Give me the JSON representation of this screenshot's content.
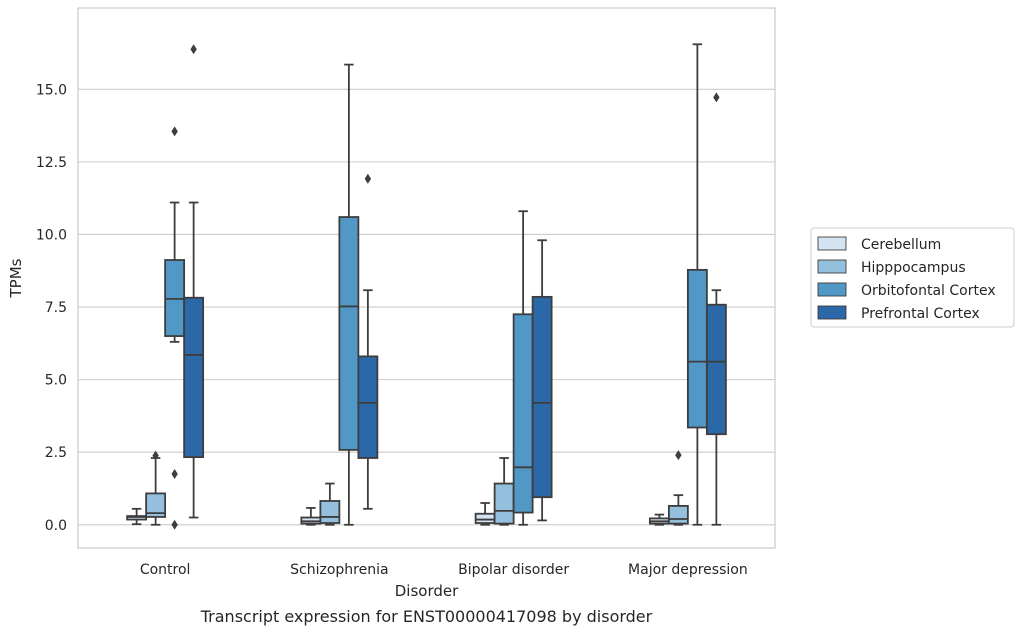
{
  "chart_data": {
    "type": "box",
    "caption": "Transcript expression for ENST00000417098 by disorder",
    "xlabel": "Disorder",
    "ylabel": "TPMs",
    "ylim": [
      -0.8,
      17.8
    ],
    "yticks": [
      0.0,
      2.5,
      5.0,
      7.5,
      10.0,
      12.5,
      15.0
    ],
    "ytick_labels": [
      "0.0",
      "2.5",
      "5.0",
      "7.5",
      "10.0",
      "12.5",
      "15.0"
    ],
    "grid": "horizontal",
    "legend_position": "right",
    "categories": [
      "Control",
      "Schizophrenia",
      "Bipolar disorder",
      "Major depression"
    ],
    "series": [
      {
        "name": "Cerebellum",
        "color": "#d3e3f1",
        "boxes": [
          {
            "whislo": 0.02,
            "q1": 0.18,
            "med": 0.27,
            "q3": 0.3,
            "whishi": 0.55,
            "fliers": []
          },
          {
            "whislo": 0.0,
            "q1": 0.04,
            "med": 0.12,
            "q3": 0.25,
            "whishi": 0.58,
            "fliers": []
          },
          {
            "whislo": 0.0,
            "q1": 0.06,
            "med": 0.18,
            "q3": 0.38,
            "whishi": 0.75,
            "fliers": []
          },
          {
            "whislo": 0.0,
            "q1": 0.04,
            "med": 0.12,
            "q3": 0.22,
            "whishi": 0.35,
            "fliers": []
          }
        ]
      },
      {
        "name": "Hipppocampus",
        "color": "#94c0dd",
        "boxes": [
          {
            "whislo": 0.0,
            "q1": 0.27,
            "med": 0.4,
            "q3": 1.08,
            "whishi": 2.3,
            "fliers": [
              2.38
            ]
          },
          {
            "whislo": 0.0,
            "q1": 0.06,
            "med": 0.27,
            "q3": 0.82,
            "whishi": 1.42,
            "fliers": []
          },
          {
            "whislo": 0.0,
            "q1": 0.04,
            "med": 0.48,
            "q3": 1.42,
            "whishi": 2.3,
            "fliers": []
          },
          {
            "whislo": 0.0,
            "q1": 0.04,
            "med": 0.2,
            "q3": 0.65,
            "whishi": 1.02,
            "fliers": [
              2.4
            ]
          }
        ]
      },
      {
        "name": "Orbitofontal Cortex",
        "color": "#5198c7",
        "boxes": [
          {
            "whislo": 6.3,
            "q1": 6.5,
            "med": 7.78,
            "q3": 9.12,
            "whishi": 11.1,
            "fliers": [
              13.55,
              1.75,
              0.0
            ]
          },
          {
            "whislo": 0.0,
            "q1": 2.58,
            "med": 7.52,
            "q3": 10.6,
            "whishi": 15.85,
            "fliers": []
          },
          {
            "whislo": 0.0,
            "q1": 0.42,
            "med": 1.98,
            "q3": 7.25,
            "whishi": 10.8,
            "fliers": []
          },
          {
            "whislo": 0.0,
            "q1": 3.35,
            "med": 5.62,
            "q3": 8.78,
            "whishi": 16.55,
            "fliers": []
          }
        ]
      },
      {
        "name": "Prefrontal Cortex",
        "color": "#2a68a8",
        "boxes": [
          {
            "whislo": 0.25,
            "q1": 2.33,
            "med": 5.85,
            "q3": 7.82,
            "whishi": 11.1,
            "fliers": [
              16.38
            ]
          },
          {
            "whislo": 0.55,
            "q1": 2.3,
            "med": 4.2,
            "q3": 5.8,
            "whishi": 8.08,
            "fliers": [
              11.92
            ]
          },
          {
            "whislo": 0.15,
            "q1": 0.95,
            "med": 4.2,
            "q3": 7.85,
            "whishi": 9.8,
            "fliers": []
          },
          {
            "whislo": 0.0,
            "q1": 3.12,
            "med": 5.62,
            "q3": 7.58,
            "whishi": 8.08,
            "fliers": [
              14.72
            ]
          }
        ]
      }
    ]
  }
}
